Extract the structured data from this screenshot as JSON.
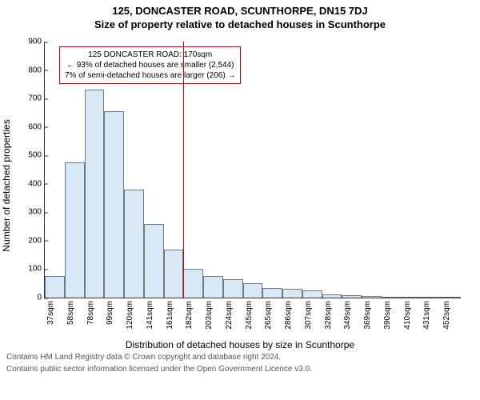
{
  "title_main": "125, DONCASTER ROAD, SCUNTHORPE, DN15 7DJ",
  "title_sub": "Size of property relative to detached houses in Scunthorpe",
  "ylabel": "Number of detached properties",
  "xlabel": "Distribution of detached houses by size in Scunthorpe",
  "chart": {
    "type": "histogram",
    "ylim": [
      0,
      900
    ],
    "ytick_step": 100,
    "yticks": [
      0,
      100,
      200,
      300,
      400,
      500,
      600,
      700,
      800,
      900
    ],
    "bar_fill": "#d7e9f7",
    "bar_border": "#777777",
    "background_color": "#ffffff",
    "marker_line_color": "#d00000",
    "marker_x_index": 7,
    "categories": [
      "37sqm",
      "58sqm",
      "78sqm",
      "99sqm",
      "120sqm",
      "141sqm",
      "161sqm",
      "182sqm",
      "203sqm",
      "224sqm",
      "245sqm",
      "265sqm",
      "286sqm",
      "307sqm",
      "328sqm",
      "349sqm",
      "369sqm",
      "390sqm",
      "410sqm",
      "431sqm",
      "452sqm"
    ],
    "values": [
      75,
      475,
      730,
      655,
      380,
      260,
      170,
      100,
      75,
      65,
      50,
      35,
      30,
      25,
      10,
      8,
      5,
      3,
      3,
      2,
      2
    ]
  },
  "annotation": {
    "line1": "125 DONCASTER ROAD: 170sqm",
    "line2": "← 93% of detached houses are smaller (2,544)",
    "line3": "7% of semi-detached houses are larger (206) →"
  },
  "footnote1": "Contains HM Land Registry data © Crown copyright and database right 2024.",
  "footnote2": "Contains public sector information licensed under the Open Government Licence v3.0."
}
